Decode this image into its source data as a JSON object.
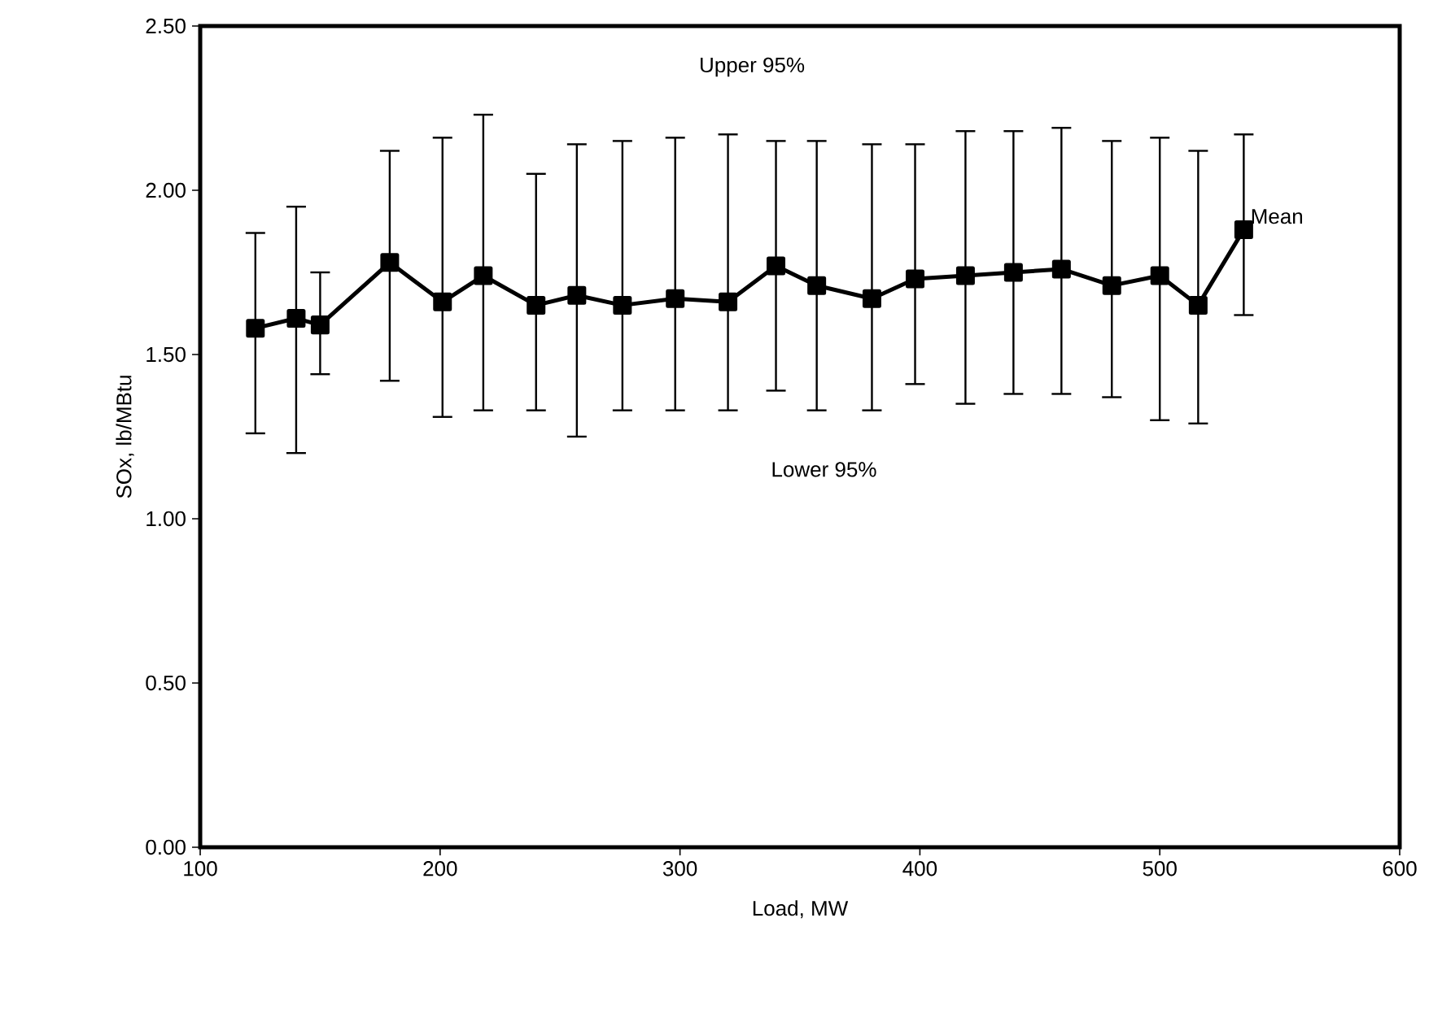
{
  "chart_data": {
    "type": "line",
    "xlabel": "Load, MW",
    "ylabel": "SOx, lb/MBtu",
    "x": [
      123,
      140,
      150,
      179,
      201,
      218,
      240,
      257,
      276,
      298,
      320,
      340,
      357,
      380,
      398,
      419,
      439,
      459,
      480,
      500,
      516,
      535
    ],
    "series": [
      {
        "color": "#000000",
        "values": [
          1.58,
          1.61,
          1.59,
          1.78,
          1.66,
          1.74,
          1.65,
          1.68,
          1.65,
          1.67,
          1.66,
          1.77,
          1.71,
          1.67,
          1.73,
          1.74,
          1.75,
          1.76,
          1.71,
          1.74,
          1.65,
          1.88
        ],
        "errors": [
          [
            1.26,
            1.87
          ],
          [
            1.2,
            1.95
          ],
          [
            1.44,
            1.75
          ],
          [
            1.42,
            2.12
          ],
          [
            1.31,
            2.16
          ],
          [
            1.33,
            2.23
          ],
          [
            1.33,
            2.05
          ],
          [
            1.25,
            2.14
          ],
          [
            1.33,
            2.15
          ],
          [
            1.33,
            2.16
          ],
          [
            1.33,
            2.17
          ],
          [
            1.39,
            2.15
          ],
          [
            1.33,
            2.15
          ],
          [
            1.33,
            2.14
          ],
          [
            1.41,
            2.14
          ],
          [
            1.35,
            2.18
          ],
          [
            1.38,
            2.18
          ],
          [
            1.38,
            2.19
          ],
          [
            1.37,
            2.15
          ],
          [
            1.3,
            2.16
          ],
          [
            1.29,
            2.12
          ],
          [
            1.62,
            2.17
          ]
        ]
      }
    ],
    "marker": "square",
    "line_style": "solid",
    "grid": false,
    "xlim": [
      100,
      600
    ],
    "ylim": [
      0,
      2.5
    ],
    "xticks": [
      100,
      200,
      300,
      400,
      500,
      600
    ],
    "yticks": [
      {
        "value": 0,
        "label": "0.00"
      },
      {
        "value": 0.5,
        "label": "0.50"
      },
      {
        "value": 1,
        "label": "1.00"
      },
      {
        "value": 1.5,
        "label": "1.50"
      },
      {
        "value": 2,
        "label": "2.00"
      },
      {
        "value": 2.5,
        "label": "2.50"
      }
    ],
    "annotations": [
      "Upper 95%",
      "Lower 95%",
      {
        "text": "Mean",
        "x": 537,
        "y": 1.92
      }
    ]
  }
}
